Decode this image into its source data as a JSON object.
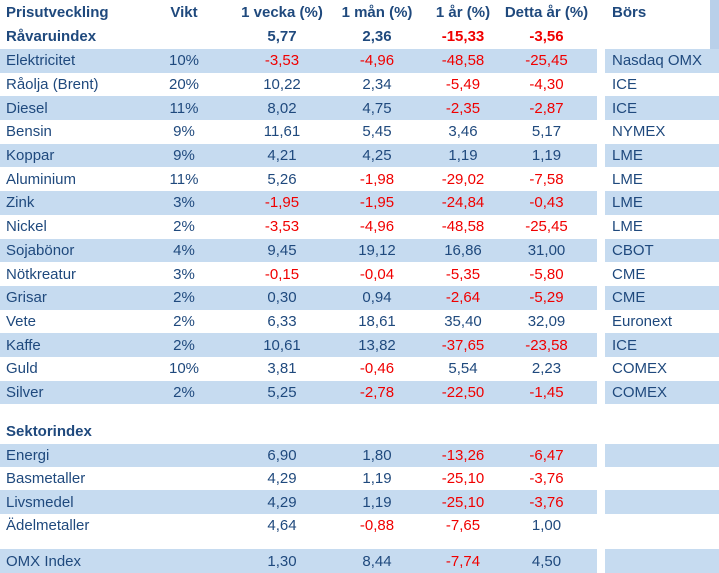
{
  "chart_data": {
    "type": "table",
    "title": "Prisutveckling",
    "columns": [
      "Prisutveckling",
      "Vikt",
      "1 vecka (%)",
      "1 mån (%)",
      "1 år (%)",
      "Detta år (%)",
      "Börs"
    ],
    "summary_row": {
      "name": "Råvaruindex",
      "values": [
        "5,77",
        "2,36",
        "-15,33",
        "-3,56"
      ]
    },
    "commodities": [
      {
        "name": "Elektricitet",
        "vikt": "10%",
        "values": [
          "-3,53",
          "-4,96",
          "-48,58",
          "-25,45"
        ],
        "exchange": "Nasdaq OMX"
      },
      {
        "name": "Råolja (Brent)",
        "vikt": "20%",
        "values": [
          "10,22",
          "2,34",
          "-5,49",
          "-4,30"
        ],
        "exchange": "ICE"
      },
      {
        "name": "Diesel",
        "vikt": "11%",
        "values": [
          "8,02",
          "4,75",
          "-2,35",
          "-2,87"
        ],
        "exchange": "ICE"
      },
      {
        "name": "Bensin",
        "vikt": "9%",
        "values": [
          "11,61",
          "5,45",
          "3,46",
          "5,17"
        ],
        "exchange": "NYMEX"
      },
      {
        "name": "Koppar",
        "vikt": "9%",
        "values": [
          "4,21",
          "4,25",
          "1,19",
          "1,19"
        ],
        "exchange": "LME"
      },
      {
        "name": "Aluminium",
        "vikt": "11%",
        "values": [
          "5,26",
          "-1,98",
          "-29,02",
          "-7,58"
        ],
        "exchange": "LME"
      },
      {
        "name": "Zink",
        "vikt": "3%",
        "values": [
          "-1,95",
          "-1,95",
          "-24,84",
          "-0,43"
        ],
        "exchange": "LME"
      },
      {
        "name": "Nickel",
        "vikt": "2%",
        "values": [
          "-3,53",
          "-4,96",
          "-48,58",
          "-25,45"
        ],
        "exchange": "LME"
      },
      {
        "name": "Sojabönor",
        "vikt": "4%",
        "values": [
          "9,45",
          "19,12",
          "16,86",
          "31,00"
        ],
        "exchange": "CBOT"
      },
      {
        "name": "Nötkreatur",
        "vikt": "3%",
        "values": [
          "-0,15",
          "-0,04",
          "-5,35",
          "-5,80"
        ],
        "exchange": "CME"
      },
      {
        "name": "Grisar",
        "vikt": "2%",
        "values": [
          "0,30",
          "0,94",
          "-2,64",
          "-5,29"
        ],
        "exchange": "CME"
      },
      {
        "name": "Vete",
        "vikt": "2%",
        "values": [
          "6,33",
          "18,61",
          "35,40",
          "32,09"
        ],
        "exchange": "Euronext"
      },
      {
        "name": "Kaffe",
        "vikt": "2%",
        "values": [
          "10,61",
          "13,82",
          "-37,65",
          "-23,58"
        ],
        "exchange": "ICE"
      },
      {
        "name": "Guld",
        "vikt": "10%",
        "values": [
          "3,81",
          "-0,46",
          "5,54",
          "2,23"
        ],
        "exchange": "COMEX"
      },
      {
        "name": "Silver",
        "vikt": "2%",
        "values": [
          "5,25",
          "-2,78",
          "-22,50",
          "-1,45"
        ],
        "exchange": "COMEX"
      }
    ],
    "section_header": "Sektorindex",
    "sectors": [
      {
        "name": "Energi",
        "values": [
          "6,90",
          "1,80",
          "-13,26",
          "-6,47"
        ]
      },
      {
        "name": "Basmetaller",
        "values": [
          "4,29",
          "1,19",
          "-25,10",
          "-3,76"
        ]
      },
      {
        "name": "Livsmedel",
        "values": [
          "4,29",
          "1,19",
          "-25,10",
          "-3,76"
        ]
      },
      {
        "name": "Ädelmetaller",
        "values": [
          "4,64",
          "-0,88",
          "-7,65",
          "1,00"
        ]
      }
    ],
    "omx_row": {
      "name": "OMX Index",
      "values": [
        "1,30",
        "8,44",
        "-7,74",
        "4,50"
      ]
    }
  },
  "colors": {
    "text_navy": "#1F497D",
    "negative_red": "#F00000",
    "row_shade_blue": "#C6DBF0",
    "scrollbar_blue": "#B9D0EA",
    "background": "#FFFFFF"
  }
}
